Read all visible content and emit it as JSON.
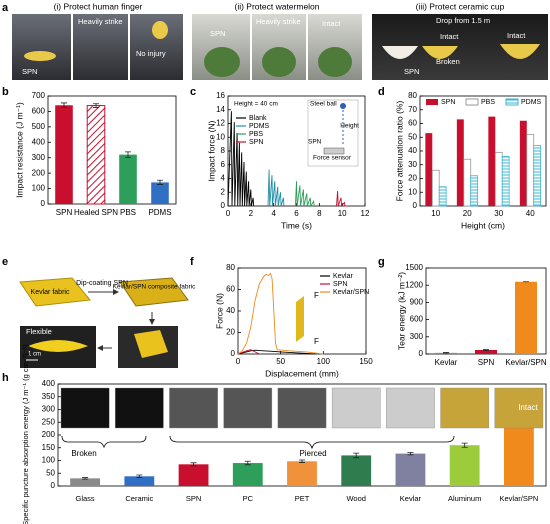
{
  "panel_labels": [
    "a",
    "b",
    "c",
    "d",
    "e",
    "f",
    "g",
    "h"
  ],
  "panel_a": {
    "titles": [
      "(i) Protect human finger",
      "(ii) Protect watermelon",
      "(iii) Protect ceramic cup"
    ],
    "captions": [
      "SPN",
      "Heavily strike",
      "No injury",
      "SPN",
      "Heavily strike",
      "Intact",
      "Drop from 1.5 m",
      "Intact",
      "SPN",
      "Broken",
      "Intact"
    ]
  },
  "panel_e": {
    "labels": [
      "Kevlar fabric",
      "Dip-coating SPN",
      "Kevlar/SPN composite fabric",
      "Flexible",
      "1 cm"
    ]
  },
  "chart_data": [
    {
      "type": "bar",
      "ylabel": "Impact resistance (J m⁻¹)",
      "categories": [
        "SPN",
        "Healed SPN",
        "PBS",
        "PDMS"
      ],
      "values": [
        640,
        638,
        320,
        140
      ],
      "errors": [
        15,
        12,
        18,
        14
      ],
      "colors": [
        "#c8102e",
        "#c8102e",
        "#2e9e5b",
        "#2f6fc4"
      ],
      "styles": [
        "solid",
        "hatch",
        "solid",
        "solid"
      ],
      "ylim": [
        0,
        700
      ],
      "yticks": [
        0,
        100,
        200,
        300,
        400,
        500,
        600,
        700
      ]
    },
    {
      "type": "line",
      "xlabel": "Time (s)",
      "ylabel": "Impact  force (N)",
      "annotations": [
        "Height = 40 cm",
        "Steel ball",
        "Height",
        "SPN",
        "Force sensor"
      ],
      "series": [
        {
          "name": "Blank",
          "color": "#000000",
          "x": [
            0,
            0.3,
            0.35,
            0.55,
            0.6,
            0.8,
            0.85,
            1.0,
            1.05,
            1.2,
            1.25,
            1.4,
            1.45,
            1.6,
            1.65,
            1.8,
            1.85,
            2.0,
            2.05,
            2.2,
            2.25
          ],
          "values": [
            0,
            13.8,
            0,
            12.2,
            0,
            10.6,
            0,
            9.2,
            0,
            7.8,
            0,
            6.4,
            0,
            5,
            0,
            3.6,
            0,
            2.4,
            0,
            1.2,
            0
          ]
        },
        {
          "name": "PDMS",
          "color": "#1f8fa6",
          "x": [
            3.5,
            3.6,
            3.65,
            3.85,
            3.9,
            4.1,
            4.15,
            4.35,
            4.4,
            4.6,
            4.65,
            4.85,
            4.9
          ],
          "values": [
            0,
            5.3,
            0,
            4.5,
            0,
            3.6,
            0,
            2.8,
            0,
            2,
            0,
            1.2,
            0
          ]
        },
        {
          "name": "PBS",
          "color": "#2e9e5b",
          "x": [
            5.9,
            6.0,
            6.05,
            6.3,
            6.35,
            6.6,
            6.65,
            6.9,
            6.95,
            7.2,
            7.25,
            7.5,
            7.55
          ],
          "values": [
            0,
            3.6,
            0,
            3,
            0,
            2.4,
            0,
            1.8,
            0,
            1.2,
            0,
            0.7,
            0
          ]
        },
        {
          "name": "SPN",
          "color": "#c8102e",
          "x": [
            9.5,
            9.6,
            9.65,
            9.9,
            9.95,
            10.2,
            10.25,
            10.5
          ],
          "values": [
            0,
            2.2,
            0,
            1.2,
            0,
            0.5,
            0,
            0
          ]
        }
      ],
      "xlim": [
        0,
        12
      ],
      "xticks": [
        0,
        2,
        4,
        6,
        8,
        10,
        12
      ],
      "ylim": [
        0,
        16
      ],
      "yticks": [
        0,
        2,
        4,
        6,
        8,
        10,
        12,
        14,
        16
      ]
    },
    {
      "type": "grouped_bar",
      "xlabel": "Height (cm)",
      "ylabel": "Force attenuation ratio (%)",
      "categories": [
        "10",
        "20",
        "30",
        "40"
      ],
      "series": [
        {
          "name": "SPN",
          "color": "#c8102e",
          "style": "solid",
          "values": [
            53,
            63,
            65,
            62
          ]
        },
        {
          "name": "PBS",
          "color": "#999999",
          "style": "outline",
          "values": [
            26,
            34,
            39,
            52
          ]
        },
        {
          "name": "PDMS",
          "color": "#3bb7d0",
          "style": "hlines",
          "values": [
            14,
            22,
            36,
            44
          ]
        }
      ],
      "ylim": [
        0,
        80
      ],
      "yticks": [
        0,
        10,
        20,
        30,
        40,
        50,
        60,
        70,
        80
      ]
    },
    {
      "type": "line",
      "xlabel": "Displacement (mm)",
      "ylabel": "Force (N)",
      "annotations": [
        "F",
        "F"
      ],
      "series": [
        {
          "name": "Kevlar",
          "color": "#000000",
          "x": [
            0,
            5,
            10,
            15,
            20,
            25,
            30,
            40,
            50,
            60,
            70,
            80,
            90
          ],
          "values": [
            0,
            1,
            2,
            3,
            3.5,
            3.2,
            3,
            2.5,
            2,
            1.5,
            1,
            0.5,
            0
          ]
        },
        {
          "name": "SPN",
          "color": "#c8102e",
          "x": [
            0,
            5,
            10,
            15,
            20,
            25
          ],
          "values": [
            0,
            1.5,
            3,
            4,
            2,
            0
          ]
        },
        {
          "name": "Kevlar/SPN",
          "color": "#f08a1c",
          "x": [
            0,
            5,
            10,
            15,
            20,
            25,
            30,
            33,
            36,
            38,
            40,
            42,
            44,
            46,
            60,
            80,
            100
          ],
          "values": [
            0,
            3,
            10,
            25,
            50,
            65,
            72,
            74,
            73,
            75,
            70,
            40,
            10,
            4,
            3,
            2,
            0
          ]
        }
      ],
      "xlim": [
        0,
        150
      ],
      "xticks": [
        0,
        50,
        100,
        150
      ],
      "ylim": [
        0,
        80
      ],
      "yticks": [
        0,
        20,
        40,
        60,
        80
      ]
    },
    {
      "type": "bar",
      "ylabel": "Tear energy (kJ m⁻²)",
      "categories": [
        "Kevlar",
        "SPN",
        "Kevlar/SPN"
      ],
      "values": [
        20,
        70,
        1260
      ],
      "errors": [
        5,
        8,
        0
      ],
      "colors": [
        "#888888",
        "#c8102e",
        "#f08a1c"
      ],
      "styles": [
        "solid",
        "solid",
        "solid"
      ],
      "ylim": [
        0,
        1500
      ],
      "yticks": [
        0,
        300,
        600,
        900,
        1200,
        1500
      ]
    },
    {
      "type": "bar",
      "ylabel": "Specific puncture absorption energy (J m⁻¹ (g cm⁻³)⁻¹)",
      "annotations": [
        "Broken",
        "Pierced",
        "Intact"
      ],
      "categories": [
        "Glass",
        "Ceramic",
        "SPN",
        "PC",
        "PET",
        "Wood",
        "Kevlar",
        "Aluminum",
        "Kevlar/SPN"
      ],
      "values": [
        30,
        38,
        85,
        90,
        97,
        120,
        127,
        160,
        250
      ],
      "errors": [
        3,
        5,
        6,
        7,
        5,
        9,
        5,
        8,
        6
      ],
      "colors": [
        "#8a8a8a",
        "#2f6fc4",
        "#c8102e",
        "#2e9e5b",
        "#f0913c",
        "#2f7d4f",
        "#8080a0",
        "#9ccc3c",
        "#f08a1c"
      ],
      "styles": [
        "solid",
        "solid",
        "solid",
        "solid",
        "solid",
        "solid",
        "solid",
        "solid",
        "solid"
      ],
      "ylim": [
        0,
        400
      ],
      "yticks": [
        0,
        50,
        100,
        150,
        200,
        250,
        300,
        350,
        400
      ]
    }
  ]
}
